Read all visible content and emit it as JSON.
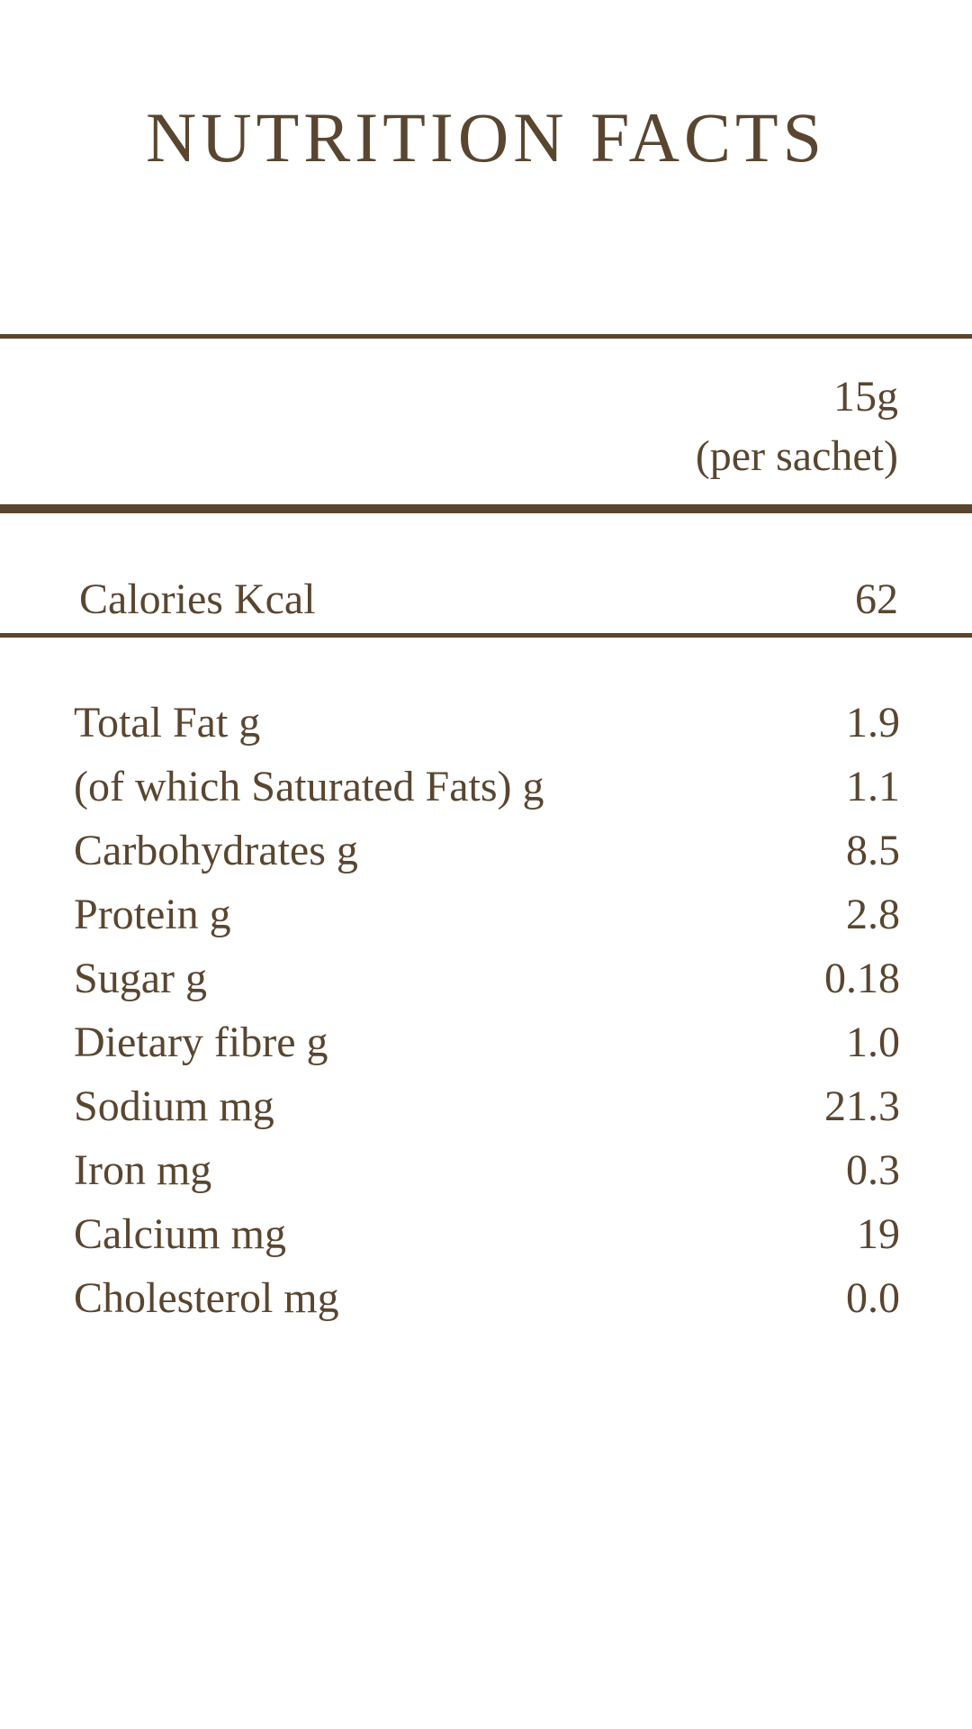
{
  "title": "NUTRITION FACTS",
  "serving": {
    "size": "15g",
    "unit_note": "(per sachet)"
  },
  "calories": {
    "label": "Calories Kcal",
    "value": "62"
  },
  "nutrients": [
    {
      "label": "Total Fat g",
      "value": "1.9"
    },
    {
      "label": "(of which Saturated Fats) g",
      "value": "1.1"
    },
    {
      "label": "Carbohydrates g",
      "value": "8.5"
    },
    {
      "label": "Protein g",
      "value": "2.8"
    },
    {
      "label": "Sugar g",
      "value": "0.18"
    },
    {
      "label": "Dietary fibre g",
      "value": "1.0"
    },
    {
      "label": "Sodium mg",
      "value": "21.3"
    },
    {
      "label": "Iron mg",
      "value": "0.3"
    },
    {
      "label": "Calcium mg",
      "value": "19"
    },
    {
      "label": "Cholesterol mg",
      "value": "0.0"
    }
  ],
  "colors": {
    "text": "#5a4630",
    "background": "#ffffff"
  }
}
